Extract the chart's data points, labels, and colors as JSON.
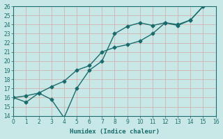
{
  "xlabel": "Humidex (Indice chaleur)",
  "bg_color": "#c8e8e8",
  "grid_color": "#b0c8c8",
  "line_color": "#1a6b6b",
  "line1_x": [
    0,
    1,
    2,
    3,
    4,
    5,
    6,
    7,
    8,
    9,
    10,
    11,
    12,
    13,
    14,
    15,
    16
  ],
  "line1_y": [
    16.0,
    15.5,
    16.5,
    15.8,
    13.8,
    17.0,
    19.0,
    20.0,
    23.0,
    23.8,
    24.2,
    23.9,
    24.2,
    23.9,
    24.5,
    26.0,
    26.5
  ],
  "line2_x": [
    0,
    1,
    2,
    3,
    4,
    5,
    6,
    7,
    8,
    9,
    10,
    11,
    12,
    13,
    14,
    15,
    16
  ],
  "line2_y": [
    16.0,
    16.2,
    16.5,
    17.2,
    17.8,
    19.0,
    19.5,
    21.0,
    21.5,
    21.8,
    22.2,
    23.0,
    24.2,
    24.0,
    24.5,
    26.0,
    26.5
  ],
  "xlim": [
    0,
    16
  ],
  "ylim": [
    14,
    26
  ],
  "xticks": [
    0,
    1,
    2,
    3,
    4,
    5,
    6,
    7,
    8,
    9,
    10,
    11,
    12,
    13,
    14,
    15,
    16
  ],
  "yticks": [
    14,
    15,
    16,
    17,
    18,
    19,
    20,
    21,
    22,
    23,
    24,
    25,
    26
  ],
  "marker_size": 2.5,
  "linewidth": 1.0
}
